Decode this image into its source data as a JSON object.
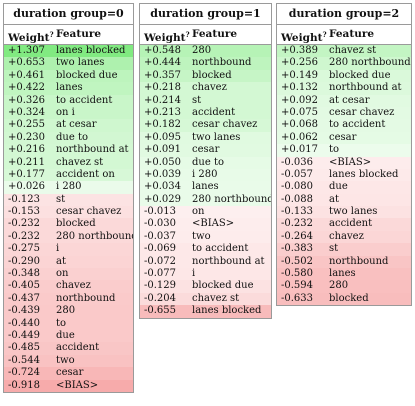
{
  "colors": {
    "positive": "#33dd33",
    "negative": "#ee5555",
    "border": "#9a9a9a"
  },
  "column_headers": {
    "weight": "Weight",
    "weight_marker": "?",
    "feature": "Feature"
  },
  "groups": [
    {
      "title": "duration group=0",
      "rows": [
        {
          "weight": "+1.307",
          "feature": "lanes blocked",
          "value": 1.307
        },
        {
          "weight": "+0.653",
          "feature": "two lanes",
          "value": 0.653
        },
        {
          "weight": "+0.461",
          "feature": "blocked due",
          "value": 0.461
        },
        {
          "weight": "+0.422",
          "feature": "lanes",
          "value": 0.422
        },
        {
          "weight": "+0.326",
          "feature": "to accident",
          "value": 0.326
        },
        {
          "weight": "+0.324",
          "feature": "on i",
          "value": 0.324
        },
        {
          "weight": "+0.255",
          "feature": "at cesar",
          "value": 0.255
        },
        {
          "weight": "+0.230",
          "feature": "due to",
          "value": 0.23
        },
        {
          "weight": "+0.216",
          "feature": "northbound at",
          "value": 0.216
        },
        {
          "weight": "+0.211",
          "feature": "chavez st",
          "value": 0.211
        },
        {
          "weight": "+0.177",
          "feature": "accident on",
          "value": 0.177
        },
        {
          "weight": "+0.026",
          "feature": "i 280",
          "value": 0.026
        },
        {
          "weight": "-0.123",
          "feature": "st",
          "value": -0.123
        },
        {
          "weight": "-0.153",
          "feature": "cesar chavez",
          "value": -0.153
        },
        {
          "weight": "-0.232",
          "feature": "blocked",
          "value": -0.232
        },
        {
          "weight": "-0.232",
          "feature": "280 northbound",
          "value": -0.232
        },
        {
          "weight": "-0.275",
          "feature": "i",
          "value": -0.275
        },
        {
          "weight": "-0.290",
          "feature": "at",
          "value": -0.29
        },
        {
          "weight": "-0.348",
          "feature": "on",
          "value": -0.348
        },
        {
          "weight": "-0.405",
          "feature": "chavez",
          "value": -0.405
        },
        {
          "weight": "-0.437",
          "feature": "northbound",
          "value": -0.437
        },
        {
          "weight": "-0.439",
          "feature": "280",
          "value": -0.439
        },
        {
          "weight": "-0.440",
          "feature": "to",
          "value": -0.44
        },
        {
          "weight": "-0.449",
          "feature": "due",
          "value": -0.449
        },
        {
          "weight": "-0.485",
          "feature": "accident",
          "value": -0.485
        },
        {
          "weight": "-0.544",
          "feature": "two",
          "value": -0.544
        },
        {
          "weight": "-0.724",
          "feature": "cesar",
          "value": -0.724
        },
        {
          "weight": "-0.918",
          "feature": "<BIAS>",
          "value": -0.918
        }
      ]
    },
    {
      "title": "duration group=1",
      "rows": [
        {
          "weight": "+0.548",
          "feature": "280",
          "value": 0.548
        },
        {
          "weight": "+0.444",
          "feature": "northbound",
          "value": 0.444
        },
        {
          "weight": "+0.357",
          "feature": "blocked",
          "value": 0.357
        },
        {
          "weight": "+0.218",
          "feature": "chavez",
          "value": 0.218
        },
        {
          "weight": "+0.214",
          "feature": "st",
          "value": 0.214
        },
        {
          "weight": "+0.213",
          "feature": "accident",
          "value": 0.213
        },
        {
          "weight": "+0.182",
          "feature": "cesar chavez",
          "value": 0.182
        },
        {
          "weight": "+0.095",
          "feature": "two lanes",
          "value": 0.095
        },
        {
          "weight": "+0.091",
          "feature": "cesar",
          "value": 0.091
        },
        {
          "weight": "+0.050",
          "feature": "due to",
          "value": 0.05
        },
        {
          "weight": "+0.039",
          "feature": "i 280",
          "value": 0.039
        },
        {
          "weight": "+0.034",
          "feature": "lanes",
          "value": 0.034
        },
        {
          "weight": "+0.029",
          "feature": "280 northbound",
          "value": 0.029
        },
        {
          "weight": "-0.013",
          "feature": "on",
          "value": -0.013
        },
        {
          "weight": "-0.030",
          "feature": "<BIAS>",
          "value": -0.03
        },
        {
          "weight": "-0.037",
          "feature": "two",
          "value": -0.037
        },
        {
          "weight": "-0.069",
          "feature": "to accident",
          "value": -0.069
        },
        {
          "weight": "-0.072",
          "feature": "northbound at",
          "value": -0.072
        },
        {
          "weight": "-0.077",
          "feature": "i",
          "value": -0.077
        },
        {
          "weight": "-0.129",
          "feature": "blocked due",
          "value": -0.129
        },
        {
          "weight": "-0.204",
          "feature": "chavez st",
          "value": -0.204
        },
        {
          "weight": "-0.655",
          "feature": "lanes blocked",
          "value": -0.655
        }
      ]
    },
    {
      "title": "duration group=2",
      "rows": [
        {
          "weight": "+0.389",
          "feature": "chavez st",
          "value": 0.389
        },
        {
          "weight": "+0.256",
          "feature": "280 northbound",
          "value": 0.256
        },
        {
          "weight": "+0.149",
          "feature": "blocked due",
          "value": 0.149
        },
        {
          "weight": "+0.132",
          "feature": "northbound at",
          "value": 0.132
        },
        {
          "weight": "+0.092",
          "feature": "at cesar",
          "value": 0.092
        },
        {
          "weight": "+0.075",
          "feature": "cesar chavez",
          "value": 0.075
        },
        {
          "weight": "+0.068",
          "feature": "to accident",
          "value": 0.068
        },
        {
          "weight": "+0.062",
          "feature": "cesar",
          "value": 0.062
        },
        {
          "weight": "+0.017",
          "feature": "to",
          "value": 0.017
        },
        {
          "weight": "-0.036",
          "feature": "<BIAS>",
          "value": -0.036
        },
        {
          "weight": "-0.057",
          "feature": "lanes blocked",
          "value": -0.057
        },
        {
          "weight": "-0.080",
          "feature": "due",
          "value": -0.08
        },
        {
          "weight": "-0.088",
          "feature": "at",
          "value": -0.088
        },
        {
          "weight": "-0.133",
          "feature": "two lanes",
          "value": -0.133
        },
        {
          "weight": "-0.232",
          "feature": "accident",
          "value": -0.232
        },
        {
          "weight": "-0.264",
          "feature": "chavez",
          "value": -0.264
        },
        {
          "weight": "-0.383",
          "feature": "st",
          "value": -0.383
        },
        {
          "weight": "-0.502",
          "feature": "northbound",
          "value": -0.502
        },
        {
          "weight": "-0.580",
          "feature": "lanes",
          "value": -0.58
        },
        {
          "weight": "-0.594",
          "feature": "280",
          "value": -0.594
        },
        {
          "weight": "-0.633",
          "feature": "blocked",
          "value": -0.633
        }
      ]
    }
  ]
}
